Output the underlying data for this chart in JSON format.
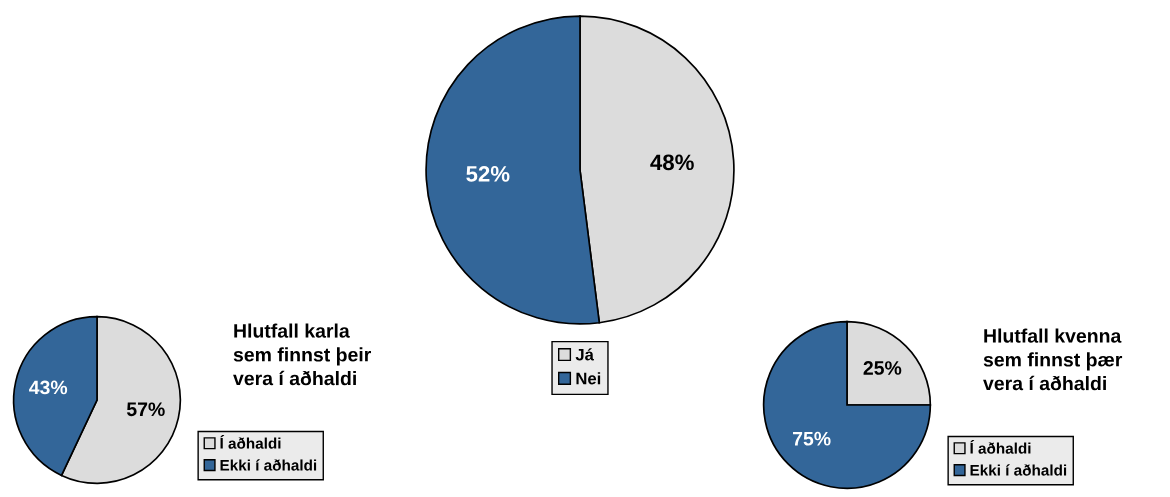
{
  "chart_data": [
    {
      "type": "pie",
      "categories": [
        "Já",
        "Nei"
      ],
      "values": [
        48,
        52
      ],
      "value_labels": [
        "48%",
        "52%"
      ],
      "colors": [
        "#dcdcdc",
        "#336699"
      ],
      "legend": "bottom"
    },
    {
      "type": "pie",
      "title": "Hlutfall karla\nsem finnst þeir\nvera í aðhaldi",
      "categories": [
        "Í aðhaldi",
        "Ekki í aðhaldi"
      ],
      "values": [
        57,
        43
      ],
      "value_labels": [
        "57%",
        "43%"
      ],
      "colors": [
        "#dcdcdc",
        "#336699"
      ],
      "legend": "right"
    },
    {
      "type": "pie",
      "title": "Hlutfall kvenna\nsem finnst þær\nvera í aðhaldi",
      "categories": [
        "Í aðhaldi",
        "Ekki í aðhaldi"
      ],
      "values": [
        25,
        75
      ],
      "value_labels": [
        "25%",
        "75%"
      ],
      "colors": [
        "#dcdcdc",
        "#336699"
      ],
      "legend": "right"
    }
  ]
}
